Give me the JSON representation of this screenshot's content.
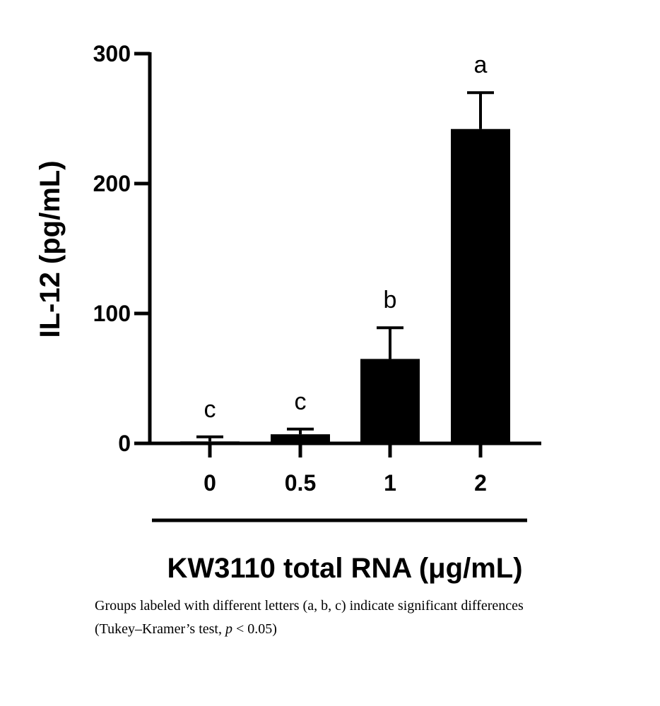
{
  "chart_data": {
    "type": "bar",
    "categories": [
      "0",
      "0.5",
      "1",
      "2"
    ],
    "values": [
      1.5,
      7,
      65,
      242
    ],
    "error_upper": [
      5,
      11,
      89,
      270
    ],
    "significance_labels": [
      "c",
      "c",
      "b",
      "a"
    ],
    "ylabel": "IL-12 (pg/mL)",
    "xlabel": "KW3110 total RNA (μg/mL)",
    "ylim": [
      0,
      300
    ],
    "yticks": [
      "0",
      "100",
      "200",
      "300"
    ],
    "grid": false,
    "bar_color": "#000000"
  },
  "caption": {
    "line1": "Groups labeled with different letters (a, b, c) indicate significant differences",
    "line2_prefix": "(Tukey–Kramer’s test, ",
    "line2_p": "p",
    "line2_suffix": " < 0.05)"
  }
}
